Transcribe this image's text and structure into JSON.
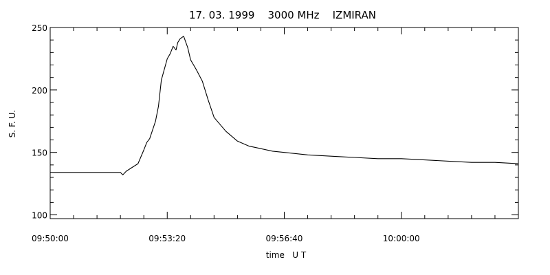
{
  "chart_data": {
    "type": "line",
    "title": "17. 03. 1999    3000 MHz    IZMIRAN",
    "xlabel": "time   U T",
    "ylabel": "S. F. U.",
    "xlim": [
      "09:50:00",
      "10:03:20"
    ],
    "ylim": [
      97,
      250
    ],
    "x_ticks": [
      "09:50:00",
      "09:53:20",
      "09:56:40",
      "10:00:00"
    ],
    "y_ticks": [
      100,
      150,
      200,
      250
    ],
    "grid": false,
    "line_color": "#000000",
    "series": [
      {
        "x": [
          "09:50:00",
          "09:50:20",
          "09:50:40",
          "09:51:00",
          "09:51:20",
          "09:51:40",
          "09:52:00",
          "09:52:04",
          "09:52:10",
          "09:52:20",
          "09:52:30",
          "09:52:40",
          "09:52:45",
          "09:52:50",
          "09:53:00",
          "09:53:05",
          "09:53:10",
          "09:53:20",
          "09:53:25",
          "09:53:30",
          "09:53:35",
          "09:53:38",
          "09:53:42",
          "09:53:48",
          "09:53:55",
          "09:54:00",
          "09:54:05",
          "09:54:10",
          "09:54:20",
          "09:54:30",
          "09:54:40",
          "09:55:00",
          "09:55:20",
          "09:55:40",
          "09:56:00",
          "09:56:20",
          "09:56:40",
          "09:57:20",
          "09:58:00",
          "09:58:40",
          "09:59:20",
          "10:00:00",
          "10:00:40",
          "10:01:20",
          "10:02:00",
          "10:02:40",
          "10:03:20"
        ],
        "y": [
          134,
          134,
          134,
          134,
          134,
          134,
          134,
          132,
          135,
          138,
          141,
          152,
          158,
          161,
          175,
          187,
          208,
          225,
          229,
          235,
          232,
          238,
          241,
          243,
          234,
          224,
          220,
          216,
          207,
          192,
          178,
          167,
          159,
          155,
          153,
          151,
          150,
          148,
          147,
          146,
          145,
          145,
          144,
          143,
          142,
          142,
          141
        ]
      }
    ]
  }
}
